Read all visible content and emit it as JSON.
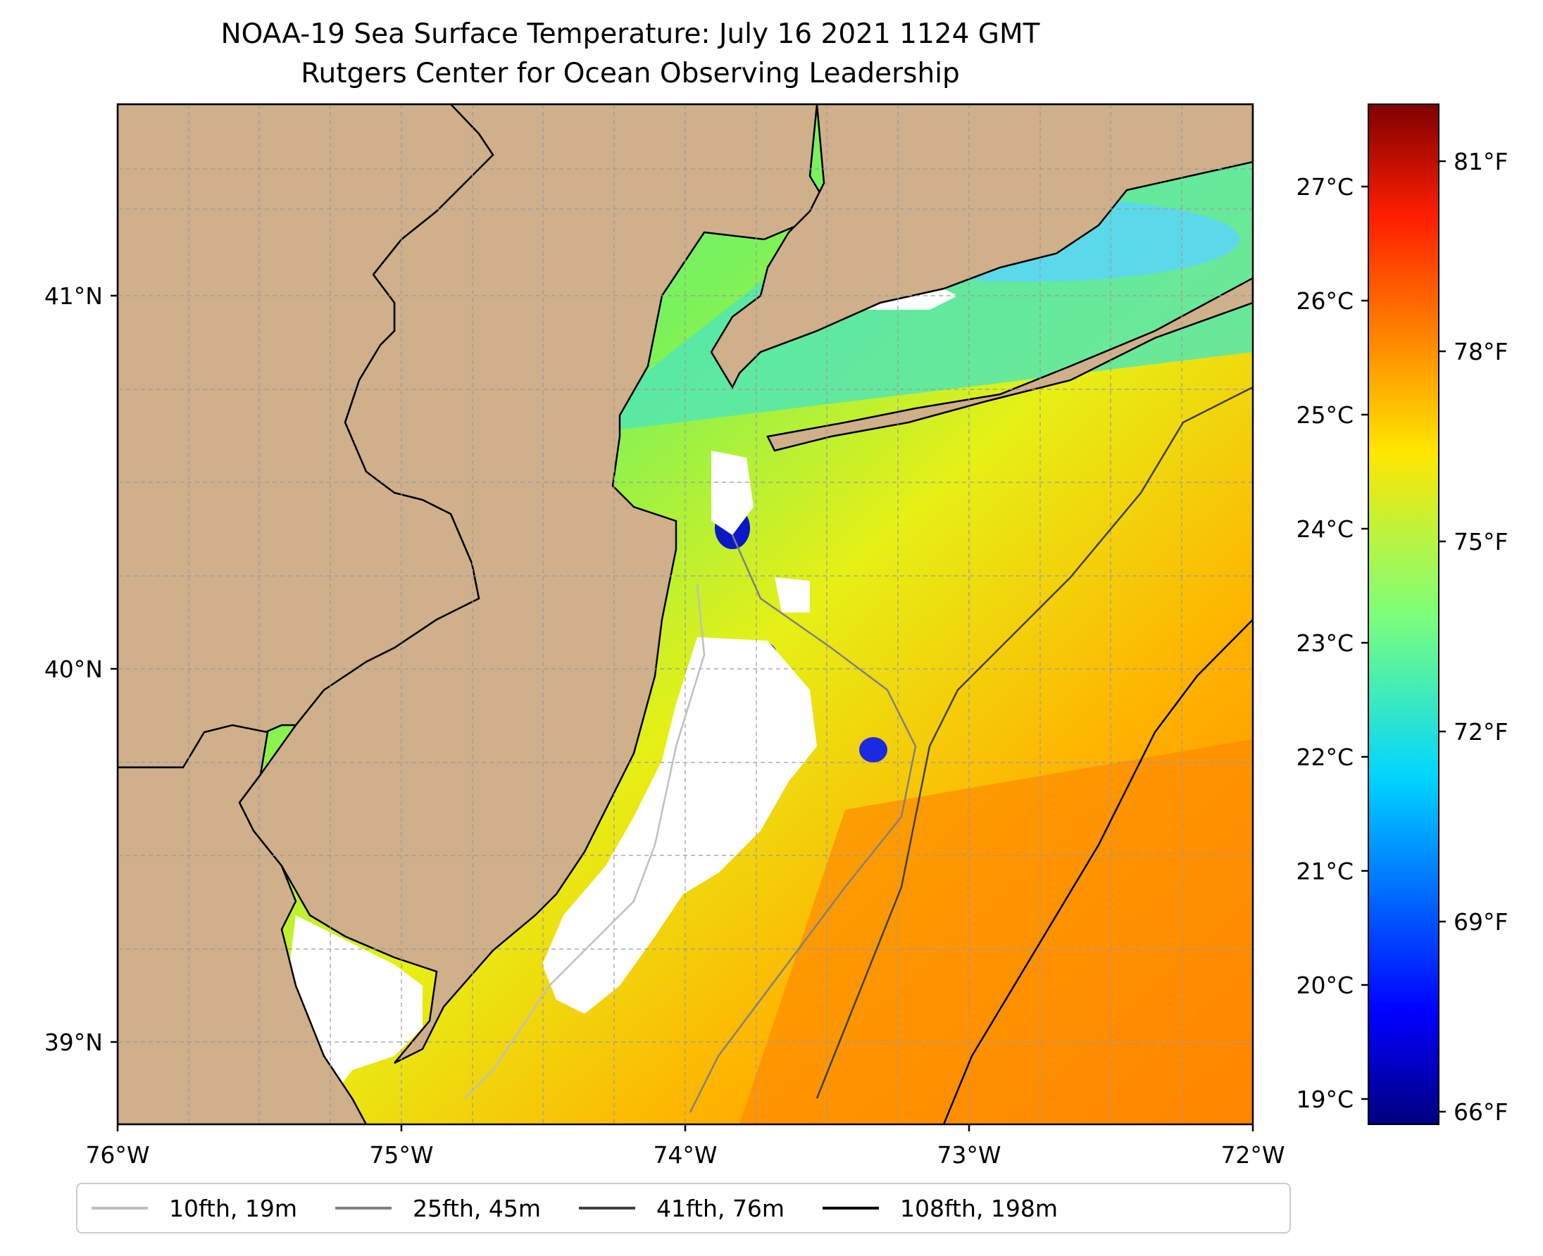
{
  "title": {
    "line1": "NOAA-19 Sea Surface Temperature: July 16 2021 1124 GMT",
    "line2": "Rutgers Center for Ocean Observing Leadership"
  },
  "map": {
    "lon_ticks": [
      "76°W",
      "75°W",
      "74°W",
      "73°W",
      "72°W"
    ],
    "lat_ticks": [
      "41°N",
      "40°N",
      "39°N"
    ],
    "lon_range": [
      -76,
      -72
    ],
    "lat_range": [
      38.75,
      41.5
    ],
    "land_color": "#cfb08b",
    "cloud_color": "#ffffff",
    "grid": "dashed gray, 0.25° spacing"
  },
  "colorbar": {
    "colormap": "jet",
    "celsius_ticks": [
      "19°C",
      "20°C",
      "21°C",
      "22°C",
      "23°C",
      "24°C",
      "25°C",
      "26°C",
      "27°C"
    ],
    "fahrenheit_ticks": [
      "66°F",
      "69°F",
      "72°F",
      "75°F",
      "78°F",
      "81°F"
    ],
    "celsius_values": [
      19,
      20,
      21,
      22,
      23,
      24,
      25,
      26,
      27
    ],
    "fahrenheit_values": [
      66,
      69,
      72,
      75,
      78,
      81
    ],
    "range_f": [
      65.8,
      81.9
    ]
  },
  "legend": {
    "items": [
      {
        "label": "10fth, 19m",
        "color": "#bfbfbf"
      },
      {
        "label": "25fth, 45m",
        "color": "#808080"
      },
      {
        "label": "41fth, 76m",
        "color": "#404040"
      },
      {
        "label": "108fth, 198m",
        "color": "#000000"
      }
    ]
  }
}
